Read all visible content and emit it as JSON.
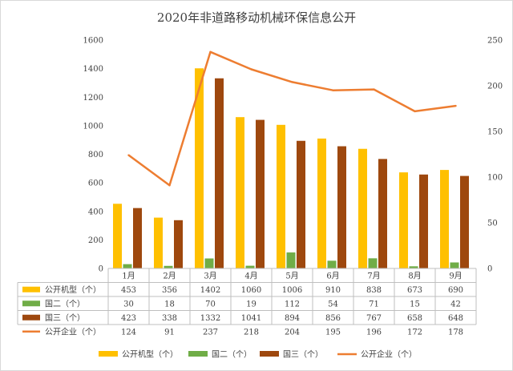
{
  "chart_data": {
    "type": "bar",
    "title": "2020年非道路移动机械环保信息公开",
    "categories": [
      "1月",
      "2月",
      "3月",
      "4月",
      "5月",
      "6月",
      "7月",
      "8月",
      "9月"
    ],
    "series": [
      {
        "name": "公开机型（个）",
        "kind": "bar",
        "axis": "left",
        "color": "#ffc000",
        "values": [
          453,
          356,
          1402,
          1060,
          1006,
          910,
          838,
          673,
          690
        ]
      },
      {
        "name": "国二（个）",
        "kind": "bar",
        "axis": "left",
        "color": "#70ad47",
        "values": [
          30,
          18,
          70,
          19,
          112,
          54,
          71,
          15,
          42
        ]
      },
      {
        "name": "国三（个）",
        "kind": "bar",
        "axis": "left",
        "color": "#9e480e",
        "values": [
          423,
          338,
          1332,
          1041,
          894,
          856,
          767,
          658,
          648
        ]
      },
      {
        "name": "公开企业（个）",
        "kind": "line",
        "axis": "right",
        "color": "#ed7d31",
        "values": [
          124,
          91,
          237,
          218,
          204,
          195,
          196,
          172,
          178
        ]
      }
    ],
    "y_left": {
      "min": 0,
      "max": 1600,
      "ticks": [
        "0",
        "200",
        "400",
        "600",
        "800",
        "1000",
        "1200",
        "1400",
        "1600"
      ]
    },
    "y_right": {
      "min": 0,
      "max": 250,
      "ticks": [
        "0",
        "50",
        "100",
        "150",
        "200",
        "250"
      ]
    },
    "grid": false,
    "data_table": true,
    "legend_position": "bottom"
  }
}
